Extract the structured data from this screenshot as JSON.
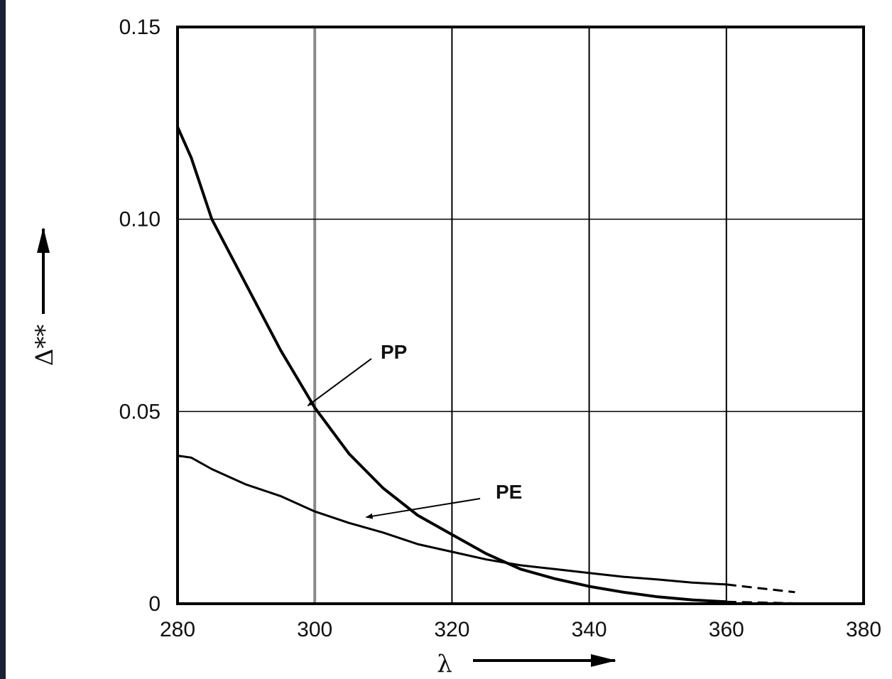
{
  "page": {
    "background": "#1a2238",
    "panel": "#ffffff"
  },
  "chart_data": {
    "type": "line",
    "title": "",
    "xlabel": "λ",
    "ylabel": "Δ**",
    "xlim": [
      280,
      380
    ],
    "ylim": [
      0,
      0.15
    ],
    "x_ticks": [
      280,
      300,
      320,
      340,
      360,
      380
    ],
    "x_tick_labels": [
      "280",
      "300",
      "320",
      "340",
      "360",
      "380"
    ],
    "y_ticks": [
      0,
      0.05,
      0.1,
      0.15
    ],
    "y_tick_labels": [
      "0",
      "0.05",
      "0.10",
      "0.15"
    ],
    "grid": true,
    "line_color": "#000000",
    "series": [
      {
        "name": "PP",
        "x": [
          280,
          282,
          285,
          290,
          295,
          300,
          305,
          310,
          315,
          320,
          325,
          330,
          335,
          340,
          345,
          350,
          355,
          360
        ],
        "y": [
          0.124,
          0.116,
          0.1,
          0.083,
          0.066,
          0.051,
          0.039,
          0.03,
          0.023,
          0.018,
          0.013,
          0.009,
          0.0065,
          0.0045,
          0.003,
          0.0018,
          0.001,
          0.0005
        ],
        "dashed_extension": {
          "x": [
            360,
            370
          ],
          "y": [
            0.0005,
            0.0001
          ]
        },
        "annotation_point": [
          299,
          0.0515
        ]
      },
      {
        "name": "PE",
        "x": [
          280,
          282,
          285,
          290,
          295,
          300,
          305,
          310,
          315,
          320,
          325,
          330,
          335,
          340,
          345,
          350,
          355,
          360
        ],
        "y": [
          0.0385,
          0.038,
          0.035,
          0.031,
          0.028,
          0.024,
          0.021,
          0.0185,
          0.0155,
          0.0135,
          0.0115,
          0.01,
          0.009,
          0.008,
          0.007,
          0.0063,
          0.0055,
          0.005
        ],
        "dashed_extension": {
          "x": [
            360,
            370
          ],
          "y": [
            0.005,
            0.003
          ]
        },
        "annotation_point": [
          307.5,
          0.0225
        ]
      }
    ]
  }
}
